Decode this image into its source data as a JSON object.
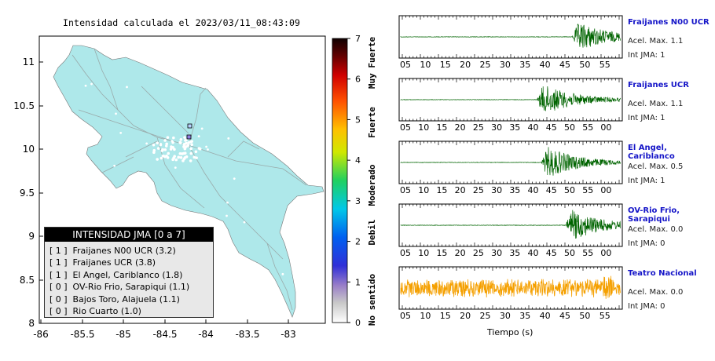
{
  "map": {
    "title": "Intensidad calculada el 2023/03/11_08:43:09",
    "land_color": "#aee8ea",
    "y_ticks": [
      "11",
      "10.5",
      "10",
      "9.5",
      "9",
      "8.5",
      "8"
    ],
    "x_ticks": [
      "-86",
      "-85.5",
      "-85",
      "-84.5",
      "-84",
      "-83.5",
      "-83"
    ],
    "colorbar_ticks": [
      "7",
      "6",
      "5",
      "4",
      "3",
      "2",
      "1",
      "0"
    ],
    "colorbar_labels": [
      "Muy Fuerte",
      "Fuerte",
      "Moderado",
      "Debil",
      "No sentido"
    ]
  },
  "legend": {
    "header": "INTENSIDAD JMA [0 a 7]",
    "items": [
      {
        "level": "[ 1 ]",
        "label": "Fraijanes N00 UCR (3.2)"
      },
      {
        "level": "[ 1 ]",
        "label": "Fraijanes UCR (3.8)"
      },
      {
        "level": "[ 1 ]",
        "label": "El Angel, Cariblanco (1.8)"
      },
      {
        "level": "[ 0 ]",
        "label": "OV-Rio Frio, Sarapiqui (1.1)"
      },
      {
        "level": "[ 0 ]",
        "label": "Bajos Toro, Alajuela (1.1)"
      },
      {
        "level": "[ 0 ]",
        "label": "Rio Cuarto (1.0)"
      }
    ]
  },
  "stations": [
    {
      "name": "Fraijanes N00 UCR",
      "acc": "Acel. Max. 1.1",
      "int": "Int JMA: 1",
      "ticks": [
        "05",
        "10",
        "15",
        "20",
        "25",
        "30",
        "35",
        "40",
        "45",
        "50",
        "55"
      ],
      "color": "#006400",
      "onset": 0.78,
      "amp": 0.9,
      "baseline": true
    },
    {
      "name": "Fraijanes UCR",
      "acc": "Acel. Max. 1.1",
      "int": "Int JMA: 1",
      "ticks": [
        "05",
        "10",
        "15",
        "20",
        "25",
        "30",
        "35",
        "40",
        "45",
        "50",
        "55",
        "00"
      ],
      "color": "#006400",
      "onset": 0.62,
      "amp": 0.95,
      "baseline": true
    },
    {
      "name": "El Angel, Cariblanco",
      "acc": "Acel. Max. 0.5",
      "int": "Int JMA: 1",
      "ticks": [
        "05",
        "10",
        "15",
        "20",
        "25",
        "30",
        "35",
        "40",
        "45",
        "50",
        "55",
        "00"
      ],
      "color": "#006400",
      "onset": 0.64,
      "amp": 0.95,
      "baseline": true
    },
    {
      "name": "OV-Rio Frio, Sarapiqui",
      "acc": "Acel. Max. 0.0",
      "int": "Int JMA: 0",
      "ticks": [
        "05",
        "10",
        "15",
        "20",
        "25",
        "30",
        "35",
        "40",
        "45",
        "50",
        "55",
        "00"
      ],
      "color": "#006400",
      "onset": 0.75,
      "amp": 0.95,
      "baseline": true
    },
    {
      "name": "Teatro Nacional",
      "acc": "Acel. Max. 0.0",
      "int": "Int JMA: 0",
      "ticks": [
        "05",
        "10",
        "15",
        "20",
        "25",
        "30",
        "35",
        "40",
        "45",
        "50",
        "55"
      ],
      "color": "#f5a000",
      "onset": 0.0,
      "amp": 0.6,
      "baseline": false
    }
  ],
  "xlabel": "Tiempo (s)",
  "chart_data": [
    {
      "type": "scatter",
      "title": "Intensidad calculada el 2023/03/11_08:43:09",
      "xlim": [
        -86,
        -82.6
      ],
      "ylim": [
        8,
        11.3
      ],
      "x_ticks": [
        -86,
        -85.5,
        -85,
        -84.5,
        -84,
        -83.5,
        -83
      ],
      "y_ticks": [
        8,
        8.5,
        9,
        9.5,
        10,
        10.5,
        11
      ],
      "colorbar": {
        "min": 0,
        "max": 7,
        "labels": [
          "Muy Fuerte",
          "Fuerte",
          "Moderado",
          "Debil",
          "No sentido"
        ]
      }
    },
    {
      "type": "line",
      "series": [
        {
          "name": "Fraijanes N00 UCR",
          "max_accel": 1.1,
          "jma_intensity": 1
        },
        {
          "name": "Fraijanes UCR",
          "max_accel": 1.1,
          "jma_intensity": 1
        },
        {
          "name": "El Angel, Cariblanco",
          "max_accel": 0.5,
          "jma_intensity": 1
        },
        {
          "name": "OV-Rio Frio, Sarapiqui",
          "max_accel": 0.0,
          "jma_intensity": 0
        },
        {
          "name": "Teatro Nacional",
          "max_accel": 0.0,
          "jma_intensity": 0
        }
      ],
      "xlabel": "Tiempo (s)"
    }
  ]
}
